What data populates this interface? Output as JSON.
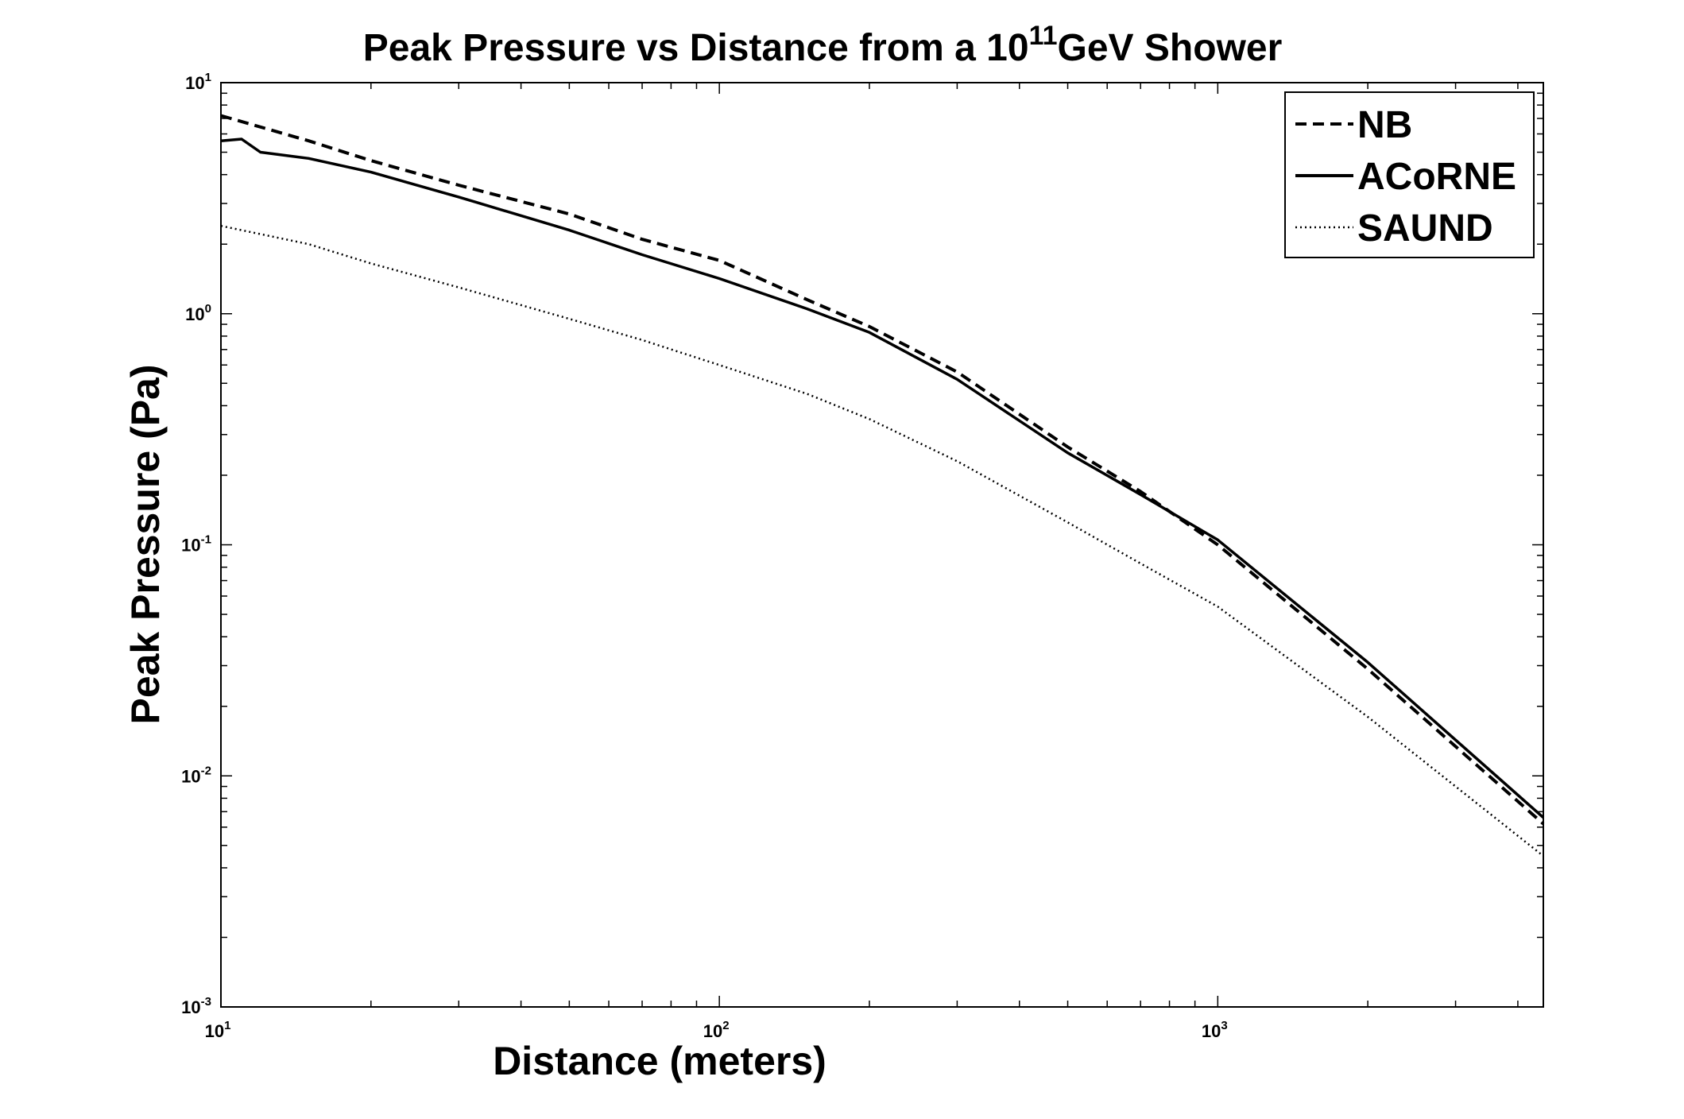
{
  "chart_data": {
    "type": "line",
    "title_main": "Peak Pressure vs Distance from a 10",
    "title_exp": "11",
    "title_tail": "GeV Shower",
    "xlabel": "Distance (meters)",
    "ylabel": "Peak Pressure (Pa)",
    "xscale": "log",
    "yscale": "log",
    "xlim": [
      10,
      4500
    ],
    "ylim": [
      0.001,
      10
    ],
    "grid": false,
    "legend_position": "top-right",
    "x_tick_labels": [
      {
        "base": "10",
        "exp": "1",
        "value": 10
      },
      {
        "base": "10",
        "exp": "2",
        "value": 100
      },
      {
        "base": "10",
        "exp": "3",
        "value": 1000
      }
    ],
    "y_tick_labels": [
      {
        "base": "10",
        "exp": "1",
        "value": 10
      },
      {
        "base": "10",
        "exp": "0",
        "value": 1
      },
      {
        "base": "10",
        "exp": "-1",
        "value": 0.1
      },
      {
        "base": "10",
        "exp": "-2",
        "value": 0.01
      },
      {
        "base": "10",
        "exp": "-3",
        "value": 0.001
      }
    ],
    "series": [
      {
        "name": "NB",
        "style": "dashed",
        "x": [
          10,
          15,
          20,
          30,
          50,
          70,
          100,
          150,
          200,
          300,
          500,
          700,
          1000,
          2000,
          4500
        ],
        "y": [
          7.2,
          5.6,
          4.6,
          3.6,
          2.7,
          2.1,
          1.7,
          1.15,
          0.88,
          0.56,
          0.265,
          0.17,
          0.1,
          0.029,
          0.0062
        ]
      },
      {
        "name": "ACoRNE",
        "style": "solid",
        "x": [
          10,
          11,
          12,
          15,
          20,
          30,
          50,
          70,
          100,
          150,
          200,
          300,
          500,
          700,
          1000,
          2000,
          4500
        ],
        "y": [
          5.6,
          5.7,
          5.0,
          4.7,
          4.1,
          3.2,
          2.3,
          1.8,
          1.42,
          1.05,
          0.83,
          0.52,
          0.25,
          0.165,
          0.105,
          0.031,
          0.0066
        ]
      },
      {
        "name": "SAUND",
        "style": "dotted",
        "x": [
          10,
          15,
          20,
          30,
          50,
          70,
          100,
          150,
          200,
          300,
          500,
          700,
          1000,
          2000,
          4500
        ],
        "y": [
          2.4,
          2.0,
          1.65,
          1.3,
          0.95,
          0.77,
          0.6,
          0.45,
          0.35,
          0.23,
          0.125,
          0.083,
          0.054,
          0.018,
          0.0045
        ]
      }
    ]
  }
}
